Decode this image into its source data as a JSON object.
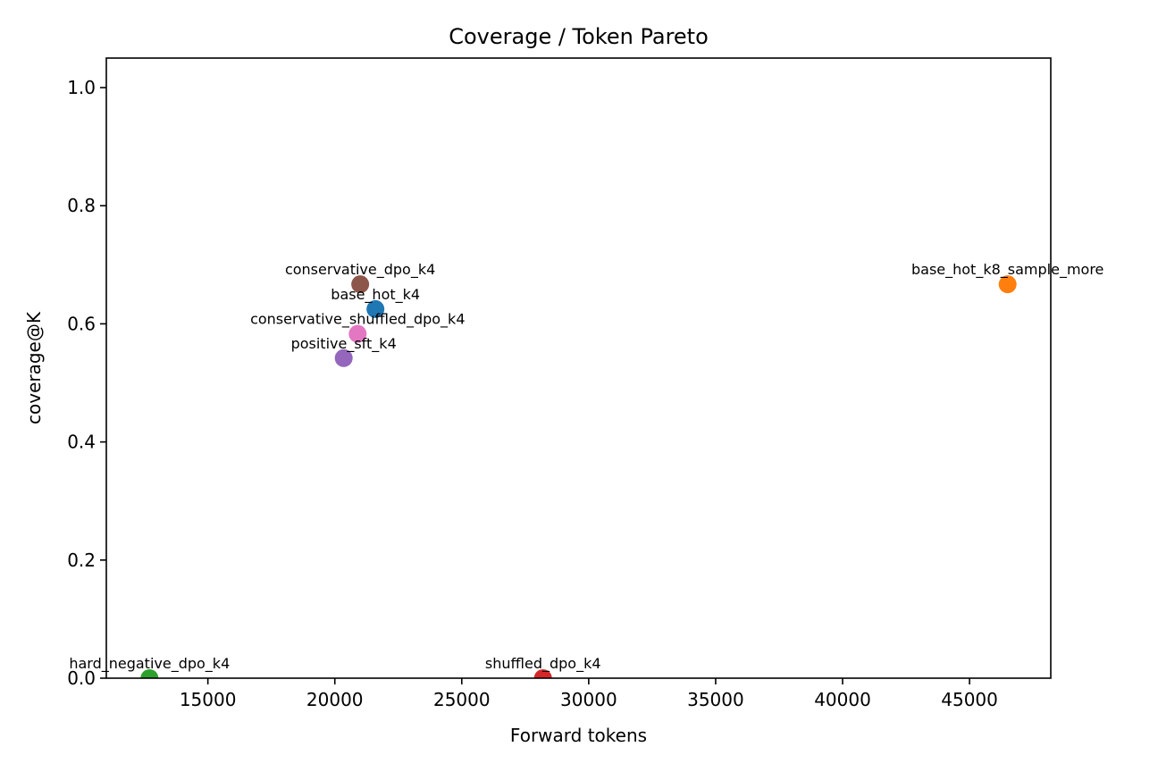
{
  "chart_data": {
    "type": "scatter",
    "title": "Coverage / Token Pareto",
    "xlabel": "Forward tokens",
    "ylabel": "coverage@K",
    "xlim": [
      11000,
      48200
    ],
    "ylim": [
      0.0,
      1.05
    ],
    "xticks": [
      15000,
      20000,
      25000,
      30000,
      35000,
      40000,
      45000
    ],
    "yticks": [
      0.0,
      0.2,
      0.4,
      0.6,
      0.8,
      1.0
    ],
    "grid": false,
    "points": [
      {
        "label": "base_hot_k4",
        "x": 21600,
        "y": 0.625,
        "color": "#1f77b4"
      },
      {
        "label": "base_hot_k8_sample_more",
        "x": 46500,
        "y": 0.667,
        "color": "#ff7f0e"
      },
      {
        "label": "hard_negative_dpo_k4",
        "x": 12700,
        "y": 0.0,
        "color": "#2ca02c"
      },
      {
        "label": "shuffled_dpo_k4",
        "x": 28200,
        "y": 0.0,
        "color": "#d62728"
      },
      {
        "label": "positive_sft_k4",
        "x": 20350,
        "y": 0.542,
        "color": "#9467bd"
      },
      {
        "label": "conservative_dpo_k4",
        "x": 21000,
        "y": 0.667,
        "color": "#8c564b"
      },
      {
        "label": "conservative_shuffled_dpo_k4",
        "x": 20900,
        "y": 0.583,
        "color": "#e377c2"
      }
    ]
  }
}
